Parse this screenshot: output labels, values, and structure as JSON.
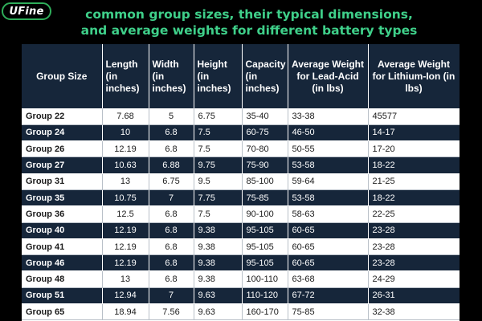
{
  "logo": {
    "text": "UFine"
  },
  "headline": {
    "line1": "common group sizes, their typical dimensions,",
    "line2": "and average weights for different battery types"
  },
  "colors": {
    "title_green": "#3fd08a",
    "header_navy": "#16263a",
    "logo_border": "#2fae5a",
    "background": "#000000"
  },
  "table": {
    "headers": [
      "Group Size",
      "Length (in inches)",
      "Width (in inches)",
      "Height (in inches)",
      "Capacity (in inches)",
      "Average Weight for Lead-Acid (in lbs)",
      "Average Weight for Lithium-Ion (in lbs)"
    ],
    "rows": [
      [
        "Group 22",
        "7.68",
        "5",
        "6.75",
        "35-40",
        "33-38",
        "45577"
      ],
      [
        "Group 24",
        "10",
        "6.8",
        "7.5",
        "60-75",
        "46-50",
        "14-17"
      ],
      [
        "Group 26",
        "12.19",
        "6.8",
        "7.5",
        "70-80",
        "50-55",
        "17-20"
      ],
      [
        "Group 27",
        "10.63",
        "6.88",
        "9.75",
        "75-90",
        "53-58",
        "18-22"
      ],
      [
        "Group 31",
        "13",
        "6.75",
        "9.5",
        "85-100",
        "59-64",
        "21-25"
      ],
      [
        "Group 35",
        "10.75",
        "7",
        "7.75",
        "75-85",
        "53-58",
        "18-22"
      ],
      [
        "Group 36",
        "12.5",
        "6.8",
        "7.5",
        "90-100",
        "58-63",
        "22-25"
      ],
      [
        "Group 40",
        "12.19",
        "6.8",
        "9.38",
        "95-105",
        "60-65",
        "23-28"
      ],
      [
        "Group 41",
        "12.19",
        "6.8",
        "9.38",
        "95-105",
        "60-65",
        "23-28"
      ],
      [
        "Group 46",
        "12.19",
        "6.8",
        "9.38",
        "95-105",
        "60-65",
        "23-28"
      ],
      [
        "Group 48",
        "13",
        "6.8",
        "9.38",
        "100-110",
        "63-68",
        "24-29"
      ],
      [
        "Group 51",
        "12.94",
        "7",
        "9.63",
        "110-120",
        "67-72",
        "26-31"
      ],
      [
        "Group 65",
        "18.94",
        "7.56",
        "9.63",
        "160-170",
        "75-85",
        "32-38"
      ]
    ]
  }
}
